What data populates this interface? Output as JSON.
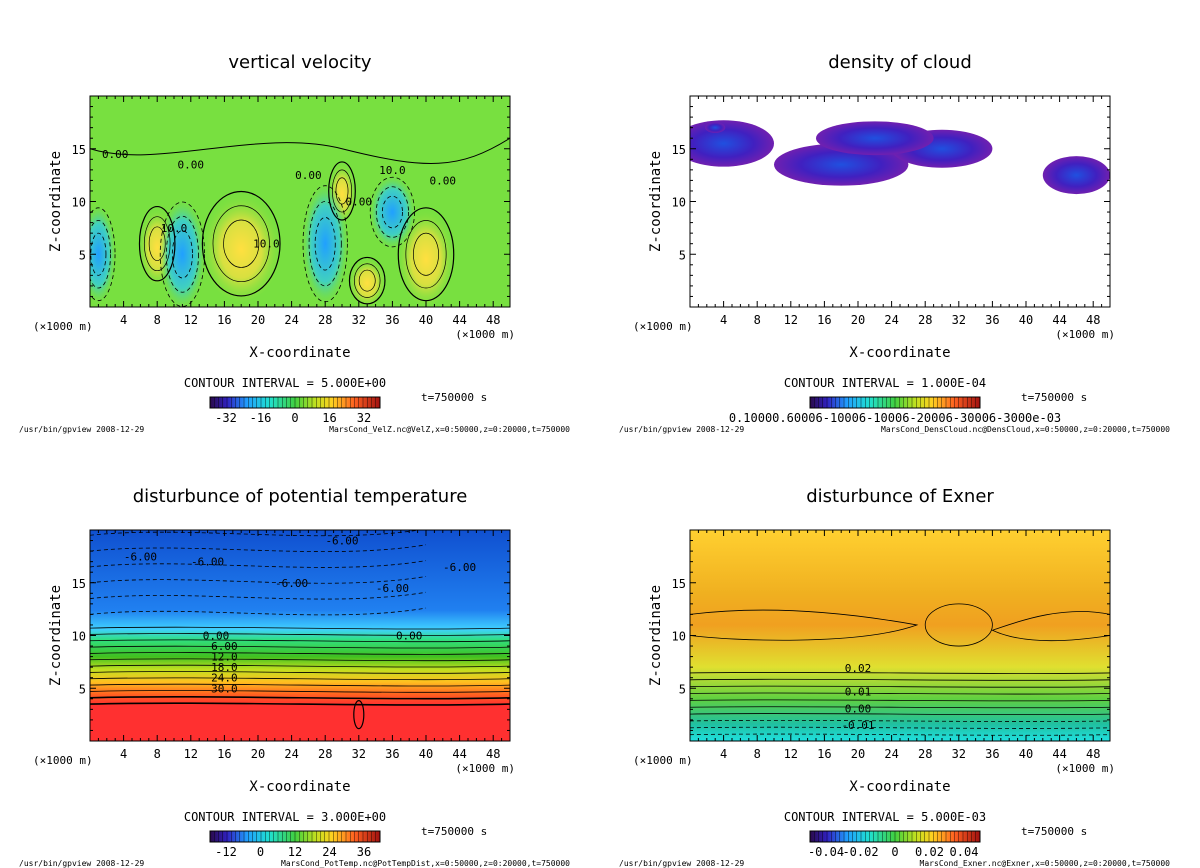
{
  "chart_data": [
    {
      "type": "contour",
      "title": "vertical velocity",
      "xlabel": "X-coordinate",
      "ylabel": "Z-coordinate",
      "x_unit": "(×1000 m)",
      "xlim": [
        0,
        50
      ],
      "ylim": [
        0,
        20
      ],
      "x_ticks": [
        4,
        8,
        12,
        16,
        20,
        24,
        28,
        32,
        36,
        40,
        44,
        48
      ],
      "y_ticks": [
        5,
        10,
        15
      ],
      "contour_interval": "CONTOUR INTERVAL = 5.000E+00",
      "contour_labels": [
        "0.00",
        "0.00",
        "0.00",
        "10.0",
        "10.0",
        "0.00",
        "0.00",
        "10.0"
      ],
      "colorbar_ticks": [
        "-32",
        "-16",
        "0",
        "16",
        "32"
      ],
      "time_label": "t=750000 s",
      "footer_left": "/usr/bin/gpview  2008-12-29",
      "footer_right": "MarsCond_VelZ.nc@VelZ,x=0:50000,z=0:20000,t=750000",
      "colormap": "rainbow",
      "base_color": "#78e040"
    },
    {
      "type": "contour",
      "title": "density of cloud",
      "xlabel": "X-coordinate",
      "ylabel": "Z-coordinate",
      "x_unit": "(×1000 m)",
      "xlim": [
        0,
        50
      ],
      "ylim": [
        0,
        20
      ],
      "x_ticks": [
        4,
        8,
        12,
        16,
        20,
        24,
        28,
        32,
        36,
        40,
        44,
        48
      ],
      "y_ticks": [
        5,
        10,
        15
      ],
      "contour_interval": "CONTOUR INTERVAL = 1.000E-04",
      "contour_labels": [],
      "colorbar_ticks": [
        "0.10000.60006-10006-10006-20006-30006-3000e-03"
      ],
      "time_label": "t=750000 s",
      "footer_left": "/usr/bin/gpview  2008-12-29",
      "footer_right": "MarsCond_DensCloud.nc@DensCloud,x=0:50000,z=0:20000,t=750000",
      "colormap": "rainbow",
      "base_color": "#ffffff"
    },
    {
      "type": "contour",
      "title": "disturbunce of potential temperature",
      "xlabel": "X-coordinate",
      "ylabel": "Z-coordinate",
      "x_unit": "(×1000 m)",
      "xlim": [
        0,
        50
      ],
      "ylim": [
        0,
        20
      ],
      "x_ticks": [
        4,
        8,
        12,
        16,
        20,
        24,
        28,
        32,
        36,
        40,
        44,
        48
      ],
      "y_ticks": [
        5,
        10,
        15
      ],
      "contour_interval": "CONTOUR INTERVAL = 3.000E+00",
      "contour_labels": [
        "-6.00",
        "-6.00",
        "-6.00",
        "-6.00",
        "-6.00",
        "-6.00",
        "0.00",
        "0.00",
        "6.00",
        "12.0",
        "18.0",
        "24.0",
        "30.0"
      ],
      "colorbar_ticks": [
        "-12",
        "0",
        "12",
        "24",
        "36"
      ],
      "time_label": "t=750000 s",
      "footer_left": "/usr/bin/gpview  2008-12-29",
      "footer_right": "MarsCond_PotTemp.nc@PotTempDist,x=0:50000,z=0:20000,t=750000",
      "colormap": "rainbow",
      "base_color": "#ff3030"
    },
    {
      "type": "contour",
      "title": "disturbunce of Exner",
      "xlabel": "X-coordinate",
      "ylabel": "Z-coordinate",
      "x_unit": "(×1000 m)",
      "xlim": [
        0,
        50
      ],
      "ylim": [
        0,
        20
      ],
      "x_ticks": [
        4,
        8,
        12,
        16,
        20,
        24,
        28,
        32,
        36,
        40,
        44,
        48
      ],
      "y_ticks": [
        5,
        10,
        15
      ],
      "contour_interval": "CONTOUR INTERVAL = 5.000E-03",
      "contour_labels": [
        "0.02",
        "0.01",
        "0.00",
        "-0.01"
      ],
      "colorbar_ticks": [
        "-0.04",
        "-0.02",
        "0",
        "0.02",
        "0.04"
      ],
      "time_label": "t=750000 s",
      "footer_left": "/usr/bin/gpview  2008-12-29",
      "footer_right": "MarsCond_Exner.nc@Exner,x=0:50000,z=0:20000,t=750000",
      "colormap": "rainbow",
      "base_color": "#f0c020"
    }
  ]
}
